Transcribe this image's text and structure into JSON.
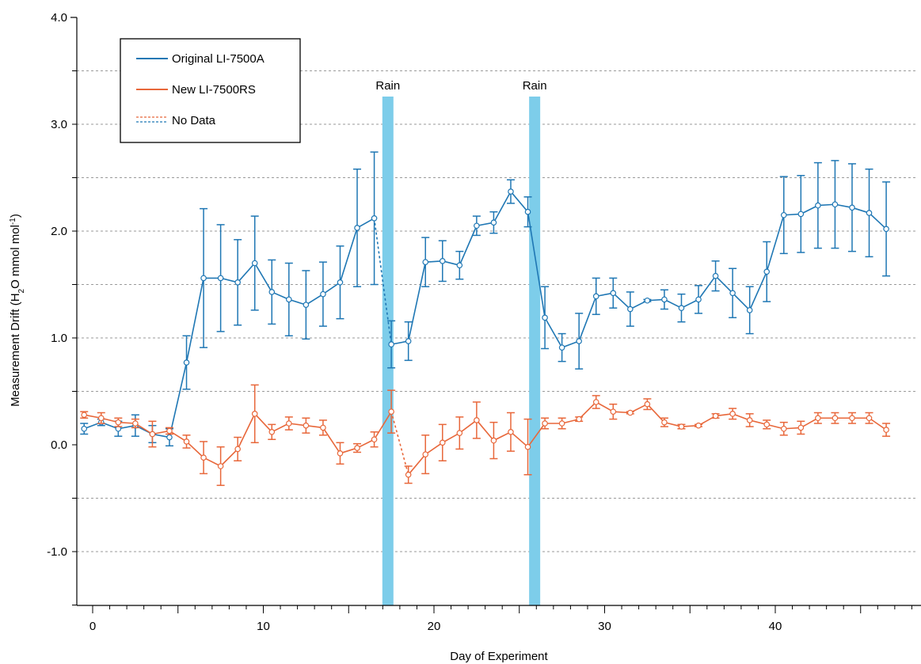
{
  "chart_data": {
    "type": "line",
    "xlabel": "Day of Experiment",
    "ylabel_main": "Measurement Drift (H",
    "ylabel_sub": "2",
    "ylabel_mid": "O mmol mol",
    "ylabel_sup": "-1",
    "ylabel_end": ")",
    "xlim": [
      -1,
      48
    ],
    "ylim": [
      -1.5,
      4.0
    ],
    "x_ticks": [
      0,
      10,
      20,
      30,
      40
    ],
    "x_tick_labels": [
      "0",
      "10",
      "20",
      "30",
      "40"
    ],
    "y_ticks": [
      -1.0,
      0.0,
      1.0,
      2.0,
      3.0,
      4.0
    ],
    "y_tick_labels": [
      "-1.0",
      "0.0",
      "1.0",
      "2.0",
      "3.0",
      "4.0"
    ],
    "grid": "horizontal dashed",
    "legend_position": "top-left",
    "legend_no_data": "No Data",
    "colors": {
      "blue": "#1f77b4",
      "orange": "#e8673a",
      "rain": "#7dcdea"
    },
    "rain_events": [
      {
        "label": "Rain",
        "x": 17.3
      },
      {
        "label": "Rain",
        "x": 25.9
      }
    ],
    "series": [
      {
        "name": "Original LI-7500A",
        "color": "#1f77b4",
        "x": [
          -0.5,
          0.5,
          1.5,
          2.5,
          3.5,
          4.5,
          5.5,
          6.5,
          7.5,
          8.5,
          9.5,
          10.5,
          11.5,
          12.5,
          13.5,
          14.5,
          15.5,
          16.5,
          17.5,
          18.5,
          19.5,
          20.5,
          21.5,
          22.5,
          23.5,
          24.5,
          25.5,
          26.5,
          27.5,
          28.5,
          29.5,
          30.5,
          31.5,
          32.5,
          33.5,
          34.5,
          35.5,
          36.5,
          37.5,
          38.5,
          39.5,
          40.5,
          41.5,
          42.5,
          43.5,
          44.5,
          45.5,
          46.5
        ],
        "y": [
          0.15,
          0.21,
          0.15,
          0.18,
          0.1,
          0.07,
          0.77,
          1.56,
          1.56,
          1.52,
          1.7,
          1.43,
          1.36,
          1.31,
          1.41,
          1.52,
          2.03,
          2.12,
          0.94,
          0.97,
          1.71,
          1.72,
          1.68,
          2.05,
          2.08,
          2.37,
          2.18,
          1.19,
          0.91,
          0.97,
          1.39,
          1.42,
          1.27,
          1.35,
          1.36,
          1.28,
          1.36,
          1.58,
          1.42,
          1.26,
          1.62,
          2.15,
          2.16,
          2.24,
          2.25,
          2.22,
          2.17,
          2.02
        ],
        "err": [
          0.05,
          0.03,
          0.07,
          0.1,
          0.08,
          0.08,
          0.25,
          0.65,
          0.5,
          0.4,
          0.44,
          0.3,
          0.34,
          0.32,
          0.3,
          0.34,
          0.55,
          0.62,
          0.22,
          0.18,
          0.23,
          0.19,
          0.13,
          0.09,
          0.1,
          0.11,
          0.14,
          0.29,
          0.13,
          0.26,
          0.17,
          0.14,
          0.16,
          0.01,
          0.09,
          0.13,
          0.13,
          0.14,
          0.23,
          0.22,
          0.28,
          0.36,
          0.36,
          0.4,
          0.41,
          0.41,
          0.41,
          0.44
        ],
        "no_data_segments": [
          [
            17,
            18
          ]
        ]
      },
      {
        "name": "New LI-7500RS",
        "color": "#e8673a",
        "x": [
          -0.5,
          0.5,
          1.5,
          2.5,
          3.5,
          4.5,
          5.5,
          6.5,
          7.5,
          8.5,
          9.5,
          10.5,
          11.5,
          12.5,
          13.5,
          14.5,
          15.5,
          16.5,
          17.5,
          18.5,
          19.5,
          20.5,
          21.5,
          22.5,
          23.5,
          24.5,
          25.5,
          26.5,
          27.5,
          28.5,
          29.5,
          30.5,
          31.5,
          32.5,
          33.5,
          34.5,
          35.5,
          36.5,
          37.5,
          38.5,
          39.5,
          40.5,
          41.5,
          42.5,
          43.5,
          44.5,
          45.5,
          46.5
        ],
        "y": [
          0.28,
          0.25,
          0.21,
          0.2,
          0.1,
          0.13,
          0.03,
          -0.12,
          -0.2,
          -0.04,
          0.29,
          0.12,
          0.2,
          0.18,
          0.16,
          -0.08,
          -0.03,
          0.05,
          0.31,
          -0.28,
          -0.09,
          0.02,
          0.11,
          0.23,
          0.04,
          0.12,
          -0.02,
          0.2,
          0.2,
          0.24,
          0.4,
          0.31,
          0.3,
          0.38,
          0.21,
          0.17,
          0.18,
          0.27,
          0.29,
          0.23,
          0.19,
          0.15,
          0.16,
          0.25,
          0.25,
          0.25,
          0.25,
          0.14
        ],
        "err": [
          0.03,
          0.05,
          0.04,
          0.04,
          0.12,
          0.03,
          0.06,
          0.15,
          0.18,
          0.11,
          0.27,
          0.07,
          0.06,
          0.07,
          0.07,
          0.1,
          0.04,
          0.07,
          0.2,
          0.08,
          0.18,
          0.17,
          0.15,
          0.17,
          0.17,
          0.18,
          0.26,
          0.05,
          0.05,
          0.02,
          0.06,
          0.07,
          0.01,
          0.05,
          0.04,
          0.02,
          0.01,
          0.02,
          0.05,
          0.06,
          0.04,
          0.06,
          0.06,
          0.05,
          0.05,
          0.05,
          0.05,
          0.06
        ],
        "no_data_segments": [
          [
            18,
            19
          ]
        ]
      }
    ]
  }
}
